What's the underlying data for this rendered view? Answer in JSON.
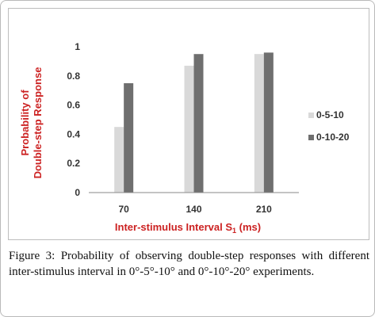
{
  "chart_data": {
    "type": "bar",
    "categories": [
      "70",
      "140",
      "210"
    ],
    "series": [
      {
        "name": "0-5-10",
        "values": [
          0.45,
          0.87,
          0.95
        ],
        "color": "#d9d9d9"
      },
      {
        "name": "0-10-20",
        "values": [
          0.75,
          0.95,
          0.96
        ],
        "color": "#6f6f6f"
      }
    ],
    "yticks": [
      "0",
      "0.2",
      "0.4",
      "0.6",
      "0.8",
      "1"
    ],
    "ylim": [
      0,
      1
    ],
    "ylabel_line1": "Probability of",
    "ylabel_line2": "Double-step Response",
    "xlabel_main": "Inter-stimulus Interval S",
    "xlabel_sub": "1",
    "xlabel_unit": " (ms)",
    "grid": false,
    "legend_position": "right"
  },
  "caption": {
    "label": "Figure 3:",
    "text": " Probability of observing double-step responses with different inter-stimulus interval in 0°-5°-10° and 0°-10°-20° experiments."
  }
}
